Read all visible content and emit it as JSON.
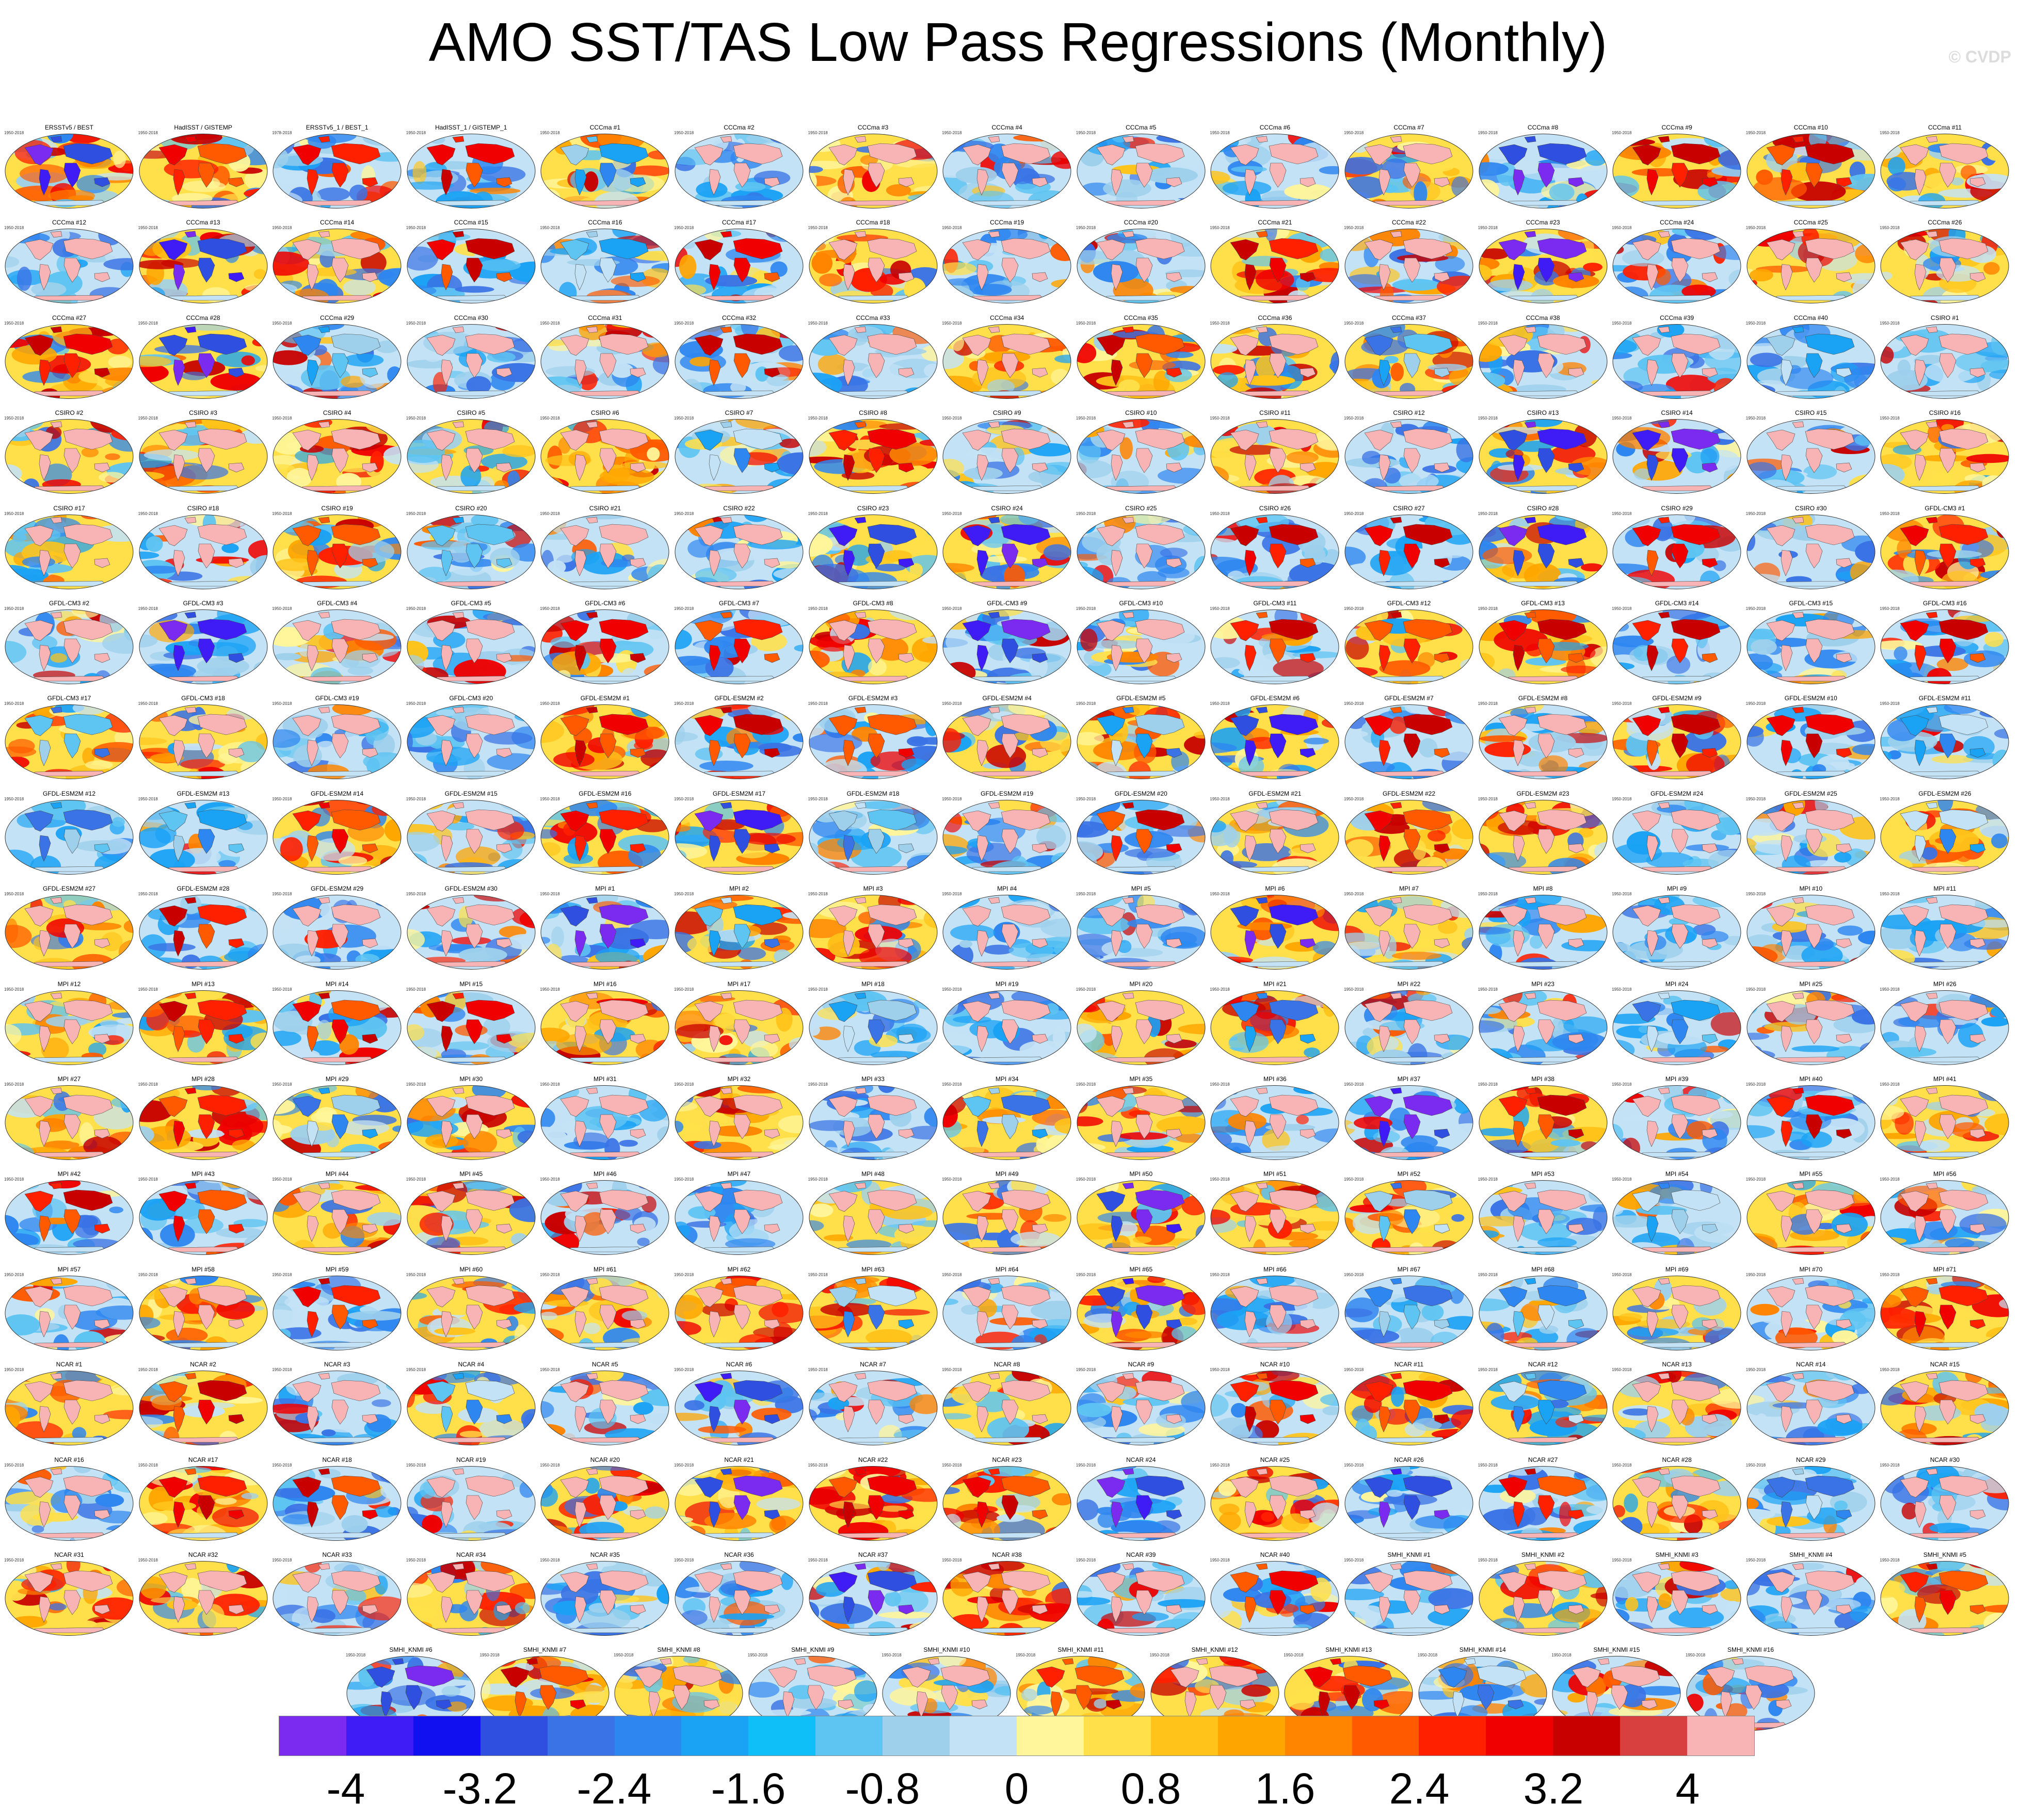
{
  "title": "AMO SST/TAS Low Pass Regressions (Monthly)",
  "copyright": "© CVDP",
  "chart_data": {
    "type": "heatmap",
    "title": "AMO SST/TAS Low Pass Regressions (Monthly)",
    "description_layout": "small-multiples grid of global map regressions, one per observational dataset / model ensemble member",
    "panels": [
      {
        "name": "ERSSTv5 / BEST",
        "period": "1950-2018"
      },
      {
        "name": "HadISST / GISTEMP",
        "period": "1950-2018"
      },
      {
        "name": "ERSSTv5_1 / BEST_1",
        "period": "1978-2018"
      },
      {
        "name": "HadISST_1 / GISTEMP_1",
        "period": "1950-2018"
      }
    ],
    "ensembles": [
      {
        "prefix": "CCCma",
        "count": 40,
        "period": "1950-2018"
      },
      {
        "prefix": "CSIRO",
        "count": 30,
        "period": "1950-2018"
      },
      {
        "prefix": "GFDL-CM3",
        "count": 20,
        "period": "1950-2018"
      },
      {
        "prefix": "GFDL-ESM2M",
        "count": 30,
        "period": "1950-2018"
      },
      {
        "prefix": "MPI",
        "count": 71,
        "period": "1950-2018"
      },
      {
        "prefix": "NCAR",
        "count": 40,
        "period": "1950-2018"
      },
      {
        "prefix": "SMHI_KNMI",
        "count": 16,
        "period": "1950-2018"
      }
    ],
    "colorbar": {
      "colors": [
        "#7B2BF0",
        "#3F1CF5",
        "#1010F0",
        "#2F4FE0",
        "#3A73E5",
        "#2E86F0",
        "#1AA2F5",
        "#0FC0F8",
        "#5EC4F2",
        "#9ED0EC",
        "#C4E2F5",
        "#FFF59A",
        "#FFE04A",
        "#FFC31A",
        "#FFA500",
        "#FF8400",
        "#FF5A00",
        "#FF2000",
        "#F00000",
        "#C80000",
        "#D84040",
        "#F8B4B4"
      ],
      "tick_labels": [
        "-4",
        "-3.2",
        "-2.4",
        "-1.6",
        "-0.8",
        "0",
        "0.8",
        "1.6",
        "2.4",
        "3.2",
        "4"
      ],
      "tick_values": [
        -4,
        -3.2,
        -2.4,
        -1.6,
        -0.8,
        0,
        0.8,
        1.6,
        2.4,
        3.2,
        4
      ],
      "range": [
        -4.4,
        4.4
      ]
    }
  }
}
